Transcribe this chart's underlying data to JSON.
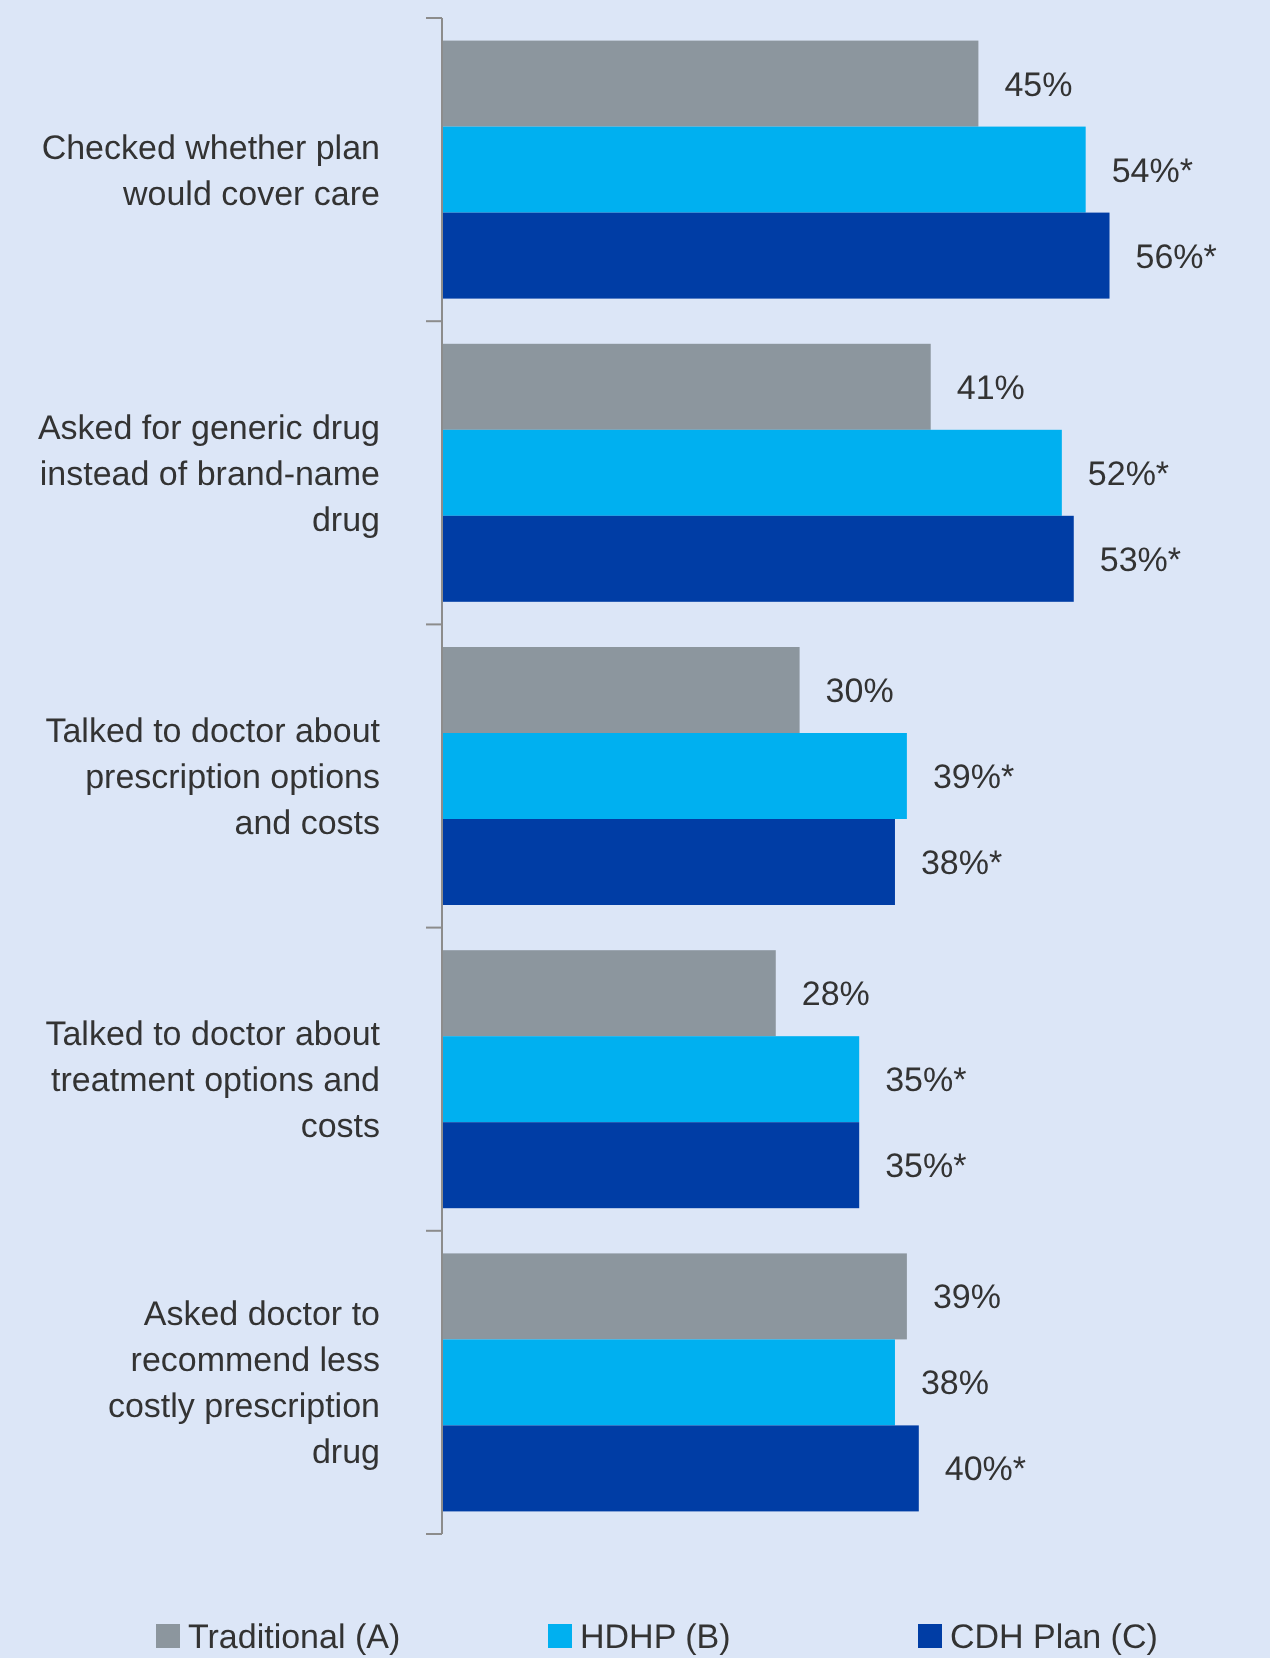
{
  "chart_data": {
    "type": "bar",
    "orientation": "horizontal",
    "categories": [
      "Checked whether plan would cover care",
      "Asked for generic drug instead of brand-name drug",
      "Talked to doctor about prescription options and costs",
      "Talked to doctor about treatment options and costs",
      "Asked doctor to recommend less costly prescription drug"
    ],
    "series": [
      {
        "name": "Traditional (A)",
        "color": "#8c969e",
        "values": [
          45,
          41,
          30,
          28,
          39
        ],
        "value_labels": [
          "45%",
          "41%",
          "30%",
          "28%",
          "39%"
        ]
      },
      {
        "name": "HDHP (B)",
        "color": "#00b0f0",
        "values": [
          54,
          52,
          39,
          35,
          38
        ],
        "value_labels": [
          "54%*",
          "52%*",
          "39%*",
          "35%*",
          "38%"
        ]
      },
      {
        "name": "CDH Plan (C)",
        "color": "#003da5",
        "values": [
          56,
          53,
          38,
          35,
          40
        ],
        "value_labels": [
          "56%*",
          "53%*",
          "38%*",
          "35%*",
          "40%*"
        ]
      }
    ],
    "tick_labels": "y",
    "legend": "bottom"
  }
}
